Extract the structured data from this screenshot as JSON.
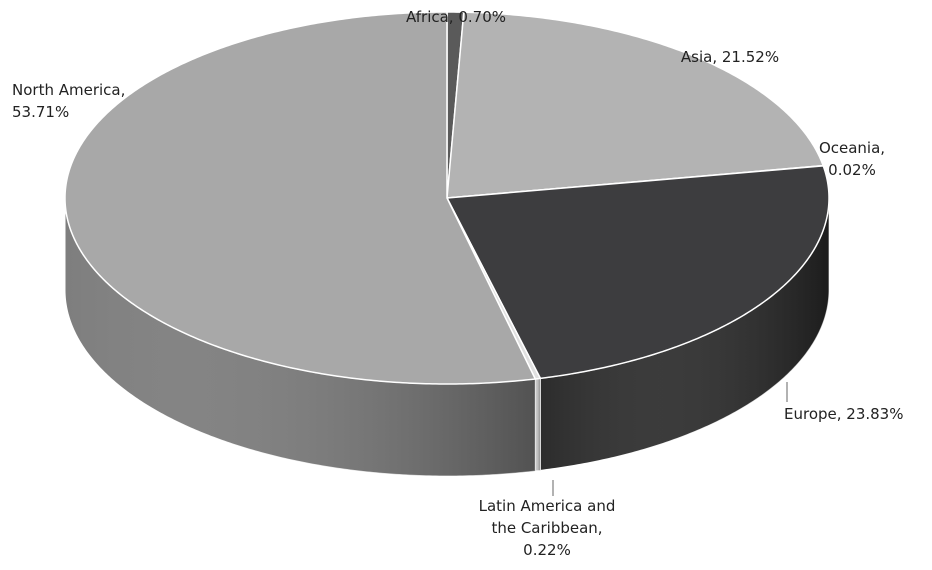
{
  "chart_data": {
    "type": "pie3d",
    "values": [
      0.7,
      21.52,
      0.02,
      23.83,
      0.22,
      53.71
    ],
    "value_labels": [
      "Africa, 0.70%",
      "Asia, 21.52%",
      "Oceania,\n0.02%",
      "Europe, 23.83%",
      "Latin America and\nthe Caribbean,\n0.22%",
      "North America,\n53.71%"
    ],
    "colors": [
      "#5a5a5a",
      "#b3b3b3",
      "#9a9a9a",
      "#3d3d3f",
      "#e0e0e0",
      "#a8a8a8"
    ],
    "side_colors": [
      "#3a3a3a",
      "#8a8a8a",
      "#6a6a6a",
      "#2c2c2c",
      "#c8c8c8",
      "#7e7e7e"
    ]
  }
}
